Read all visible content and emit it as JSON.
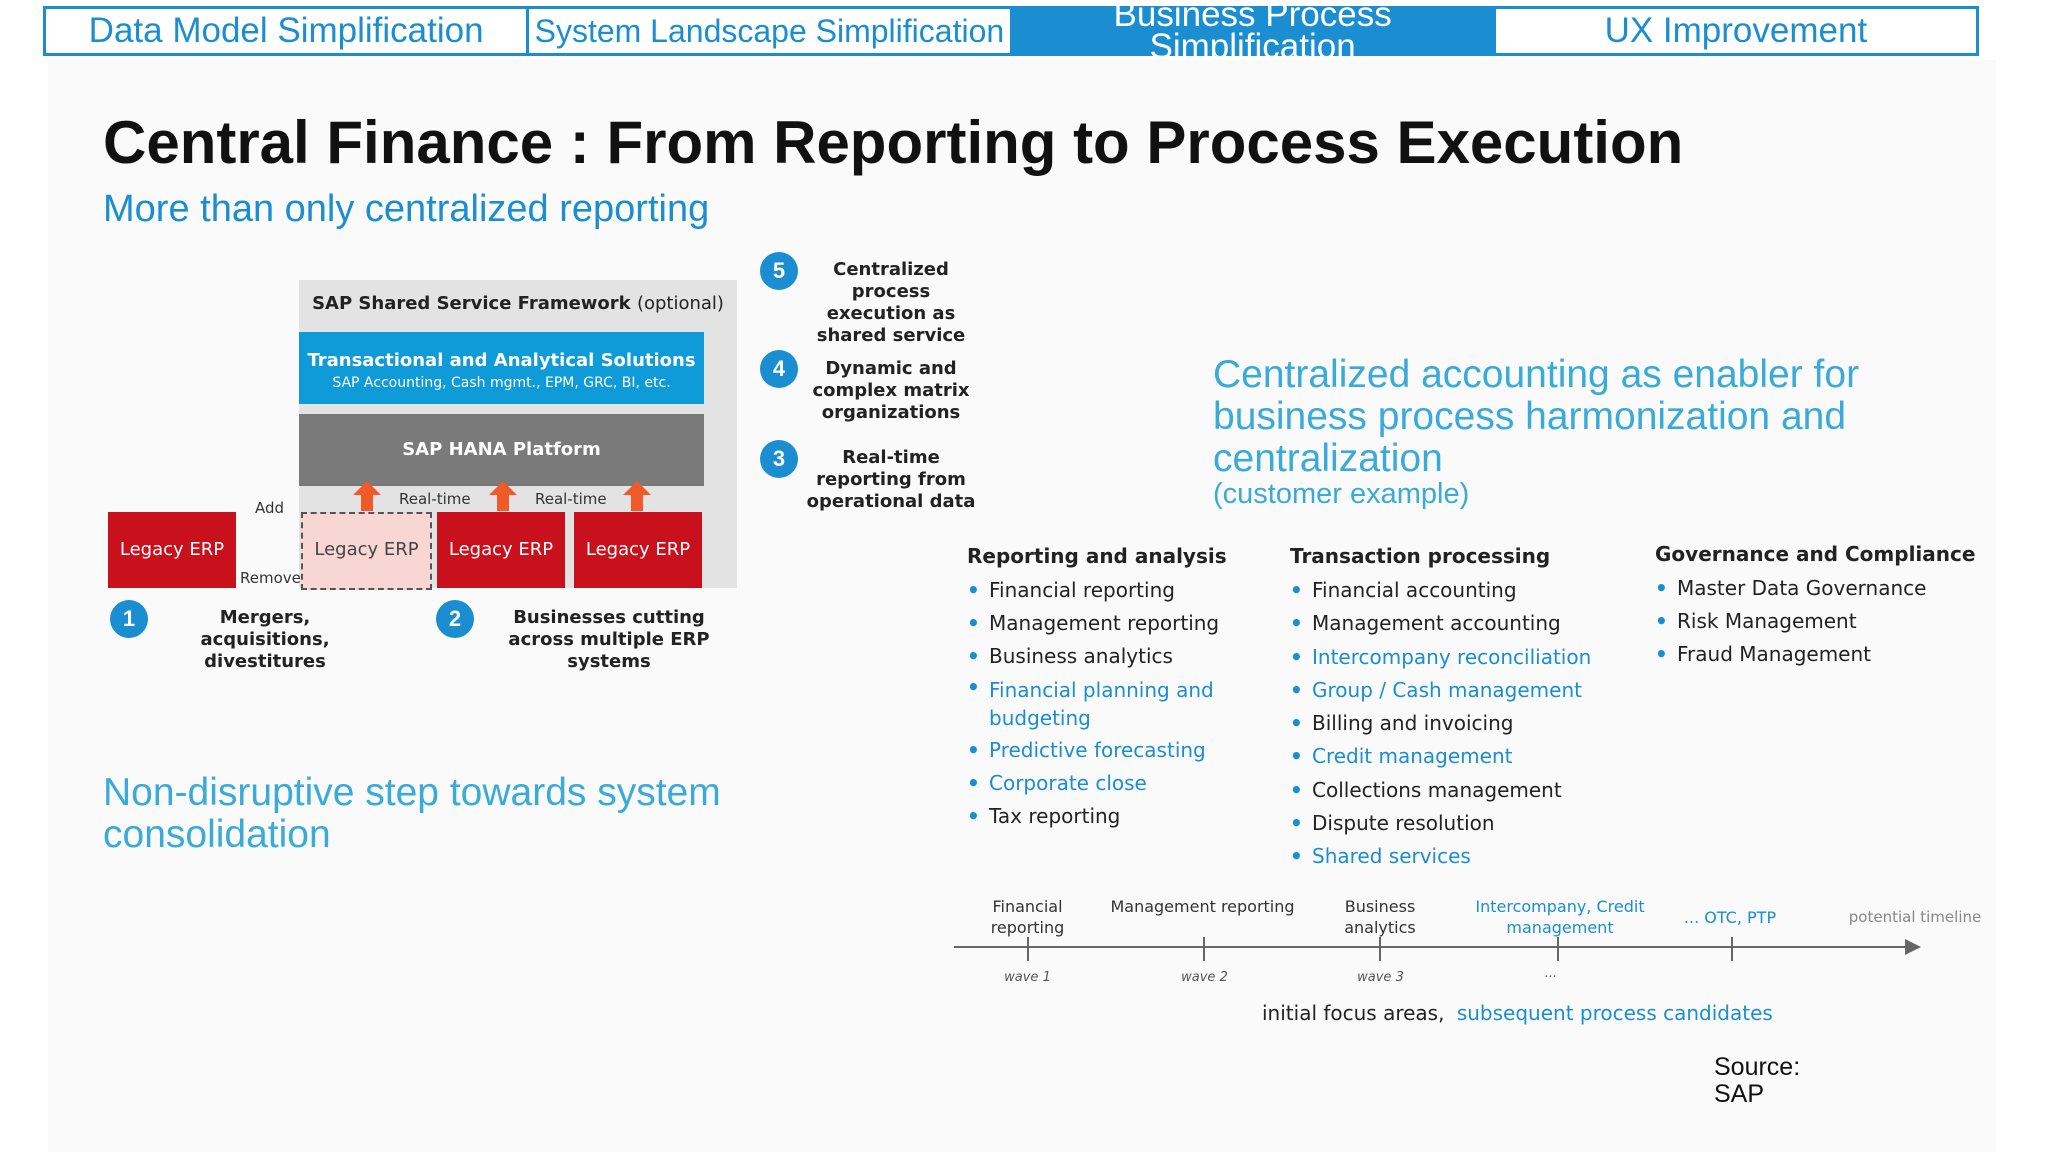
{
  "tabs": [
    {
      "label": "Data Model Simplification",
      "active": false
    },
    {
      "label": "System Landscape Simplification",
      "active": false
    },
    {
      "label": "Business Process Simplification",
      "active": true
    },
    {
      "label": "UX Improvement",
      "active": false
    }
  ],
  "title": "Central Finance : From Reporting to Process Execution",
  "subtitle": "More than only centralized reporting",
  "diagram": {
    "framework_title": "SAP Shared Service Framework",
    "framework_optional": "(optional)",
    "trans_title": "Transactional and Analytical Solutions",
    "trans_sub": "SAP Accounting, Cash mgmt., EPM, GRC, BI, etc.",
    "hana": "SAP HANA Platform",
    "realtime": "Real-time",
    "add": "Add",
    "remove": "Remove",
    "erp": "Legacy ERP",
    "steps": [
      {
        "num": "1",
        "text": "Mergers, acquisitions, divestitures"
      },
      {
        "num": "2",
        "text": "Businesses cutting across multiple ERP systems"
      },
      {
        "num": "3",
        "text": "Real-time reporting from operational data"
      },
      {
        "num": "4",
        "text": "Dynamic and complex matrix organizations"
      },
      {
        "num": "5",
        "text": "Centralized process execution as shared service"
      }
    ]
  },
  "non_disruptive": "Non-disruptive step towards system consolidation",
  "centralized": {
    "text": "Centralized accounting as enabler for business process harmonization and centralization",
    "note": "(customer example)"
  },
  "columns": [
    {
      "heading": "Reporting and analysis",
      "items": [
        {
          "text": "Financial reporting",
          "highlight": false
        },
        {
          "text": "Management reporting",
          "highlight": false
        },
        {
          "text": "Business analytics",
          "highlight": false
        },
        {
          "text": "Financial planning and budgeting",
          "highlight": true
        },
        {
          "text": "Predictive forecasting",
          "highlight": true
        },
        {
          "text": "Corporate close",
          "highlight": true
        },
        {
          "text": "Tax reporting",
          "highlight": false
        }
      ]
    },
    {
      "heading": "Transaction processing",
      "items": [
        {
          "text": "Financial accounting",
          "highlight": false
        },
        {
          "text": "Management accounting",
          "highlight": false
        },
        {
          "text": "Intercompany reconciliation",
          "highlight": true
        },
        {
          "text": "Group / Cash management",
          "highlight": true
        },
        {
          "text": "Billing and invoicing",
          "highlight": false
        },
        {
          "text": "Credit management",
          "highlight": true
        },
        {
          "text": "Collections management",
          "highlight": false
        },
        {
          "text": "Dispute resolution",
          "highlight": false
        },
        {
          "text": "Shared services",
          "highlight": true
        }
      ]
    },
    {
      "heading": "Governance and Compliance",
      "items": [
        {
          "text": "Master Data Governance",
          "highlight": false
        },
        {
          "text": "Risk Management",
          "highlight": false
        },
        {
          "text": "Fraud Management",
          "highlight": false
        }
      ]
    }
  ],
  "timeline": {
    "labels": [
      "Financial reporting",
      "Management reporting",
      "Business analytics",
      "Intercompany, Credit management",
      "... OTC, PTP"
    ],
    "waves": [
      "wave 1",
      "wave 2",
      "wave 3",
      "..."
    ],
    "end_label": "potential timeline",
    "legend_initial": "initial focus areas,",
    "legend_subsequent": "subsequent process candidates"
  },
  "source": "Source: SAP",
  "colors": {
    "accent": "#1a8ed0",
    "light_blue": "#3aaad8",
    "erp_red": "#c8111d",
    "arrow_orange": "#f05a28",
    "hana_gray": "#7a7a7a"
  }
}
